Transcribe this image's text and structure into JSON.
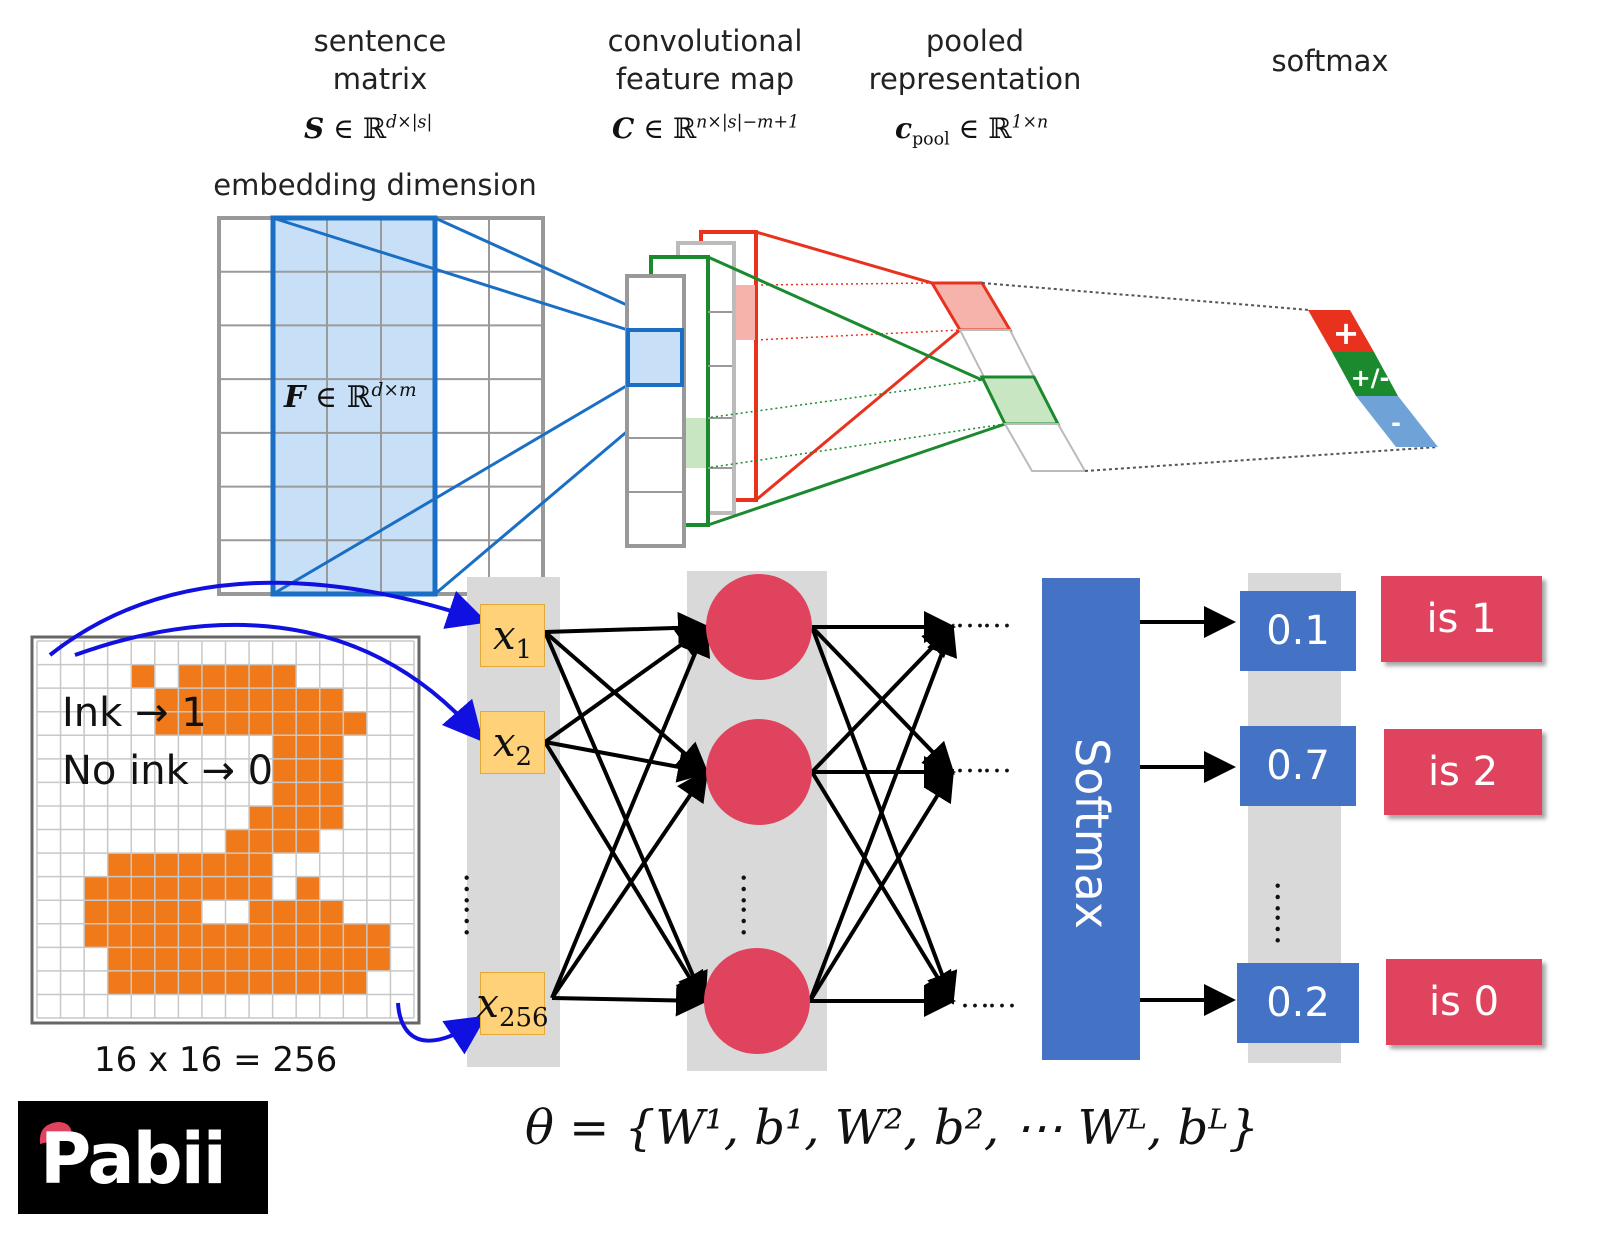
{
  "cnn": {
    "sentence_matrix": {
      "line1": "sentence",
      "line2": "matrix",
      "formula_var": "S",
      "formula_set": "ℝ",
      "formula_exp": "d×|s|"
    },
    "embedding_label": "embedding dimension",
    "filter": {
      "var": "F",
      "set": "ℝ",
      "exp": "d×m"
    },
    "conv_map": {
      "line1": "convolutional",
      "line2": "feature map",
      "formula_var": "C",
      "formula_set": "ℝ",
      "formula_exp": "n×|s|−m+1"
    },
    "pooled": {
      "line1": "pooled",
      "line2": "representation",
      "formula_var": "c",
      "formula_sub": "pool",
      "formula_set": "ℝ",
      "formula_exp": "1×n"
    },
    "softmax_label": "softmax",
    "softmax_cells": [
      "+",
      "+/-",
      "-"
    ],
    "colors": {
      "red": "#e8321e",
      "green": "#1b8a2f",
      "blue": "#1a6fc4",
      "grey": "#999999",
      "lightblue": "#c7e0f7"
    }
  },
  "digit": {
    "ink_line": "Ink → 1",
    "noink_line": "No ink → 0",
    "size_caption": "16 x 16 = 256",
    "ink_color": "#f07a1a"
  },
  "network": {
    "inputs": [
      {
        "var": "x",
        "sub": "1"
      },
      {
        "var": "x",
        "sub": "2"
      },
      {
        "var": "x",
        "sub": "256"
      }
    ],
    "softmax_block": "Softmax",
    "outputs": [
      "0.1",
      "0.7",
      "0.2"
    ],
    "classes": [
      "is 1",
      "is 2",
      "is 0"
    ],
    "dots": "……",
    "vdots": "……",
    "node_color": "#e0435e",
    "block_color": "#4472c4"
  },
  "theta": {
    "lhs": "θ",
    "eq": "=",
    "rhs": "{W¹, b¹, W², b², ⋯ Wᴸ, bᴸ}"
  },
  "logo": {
    "text": "Pabii"
  }
}
